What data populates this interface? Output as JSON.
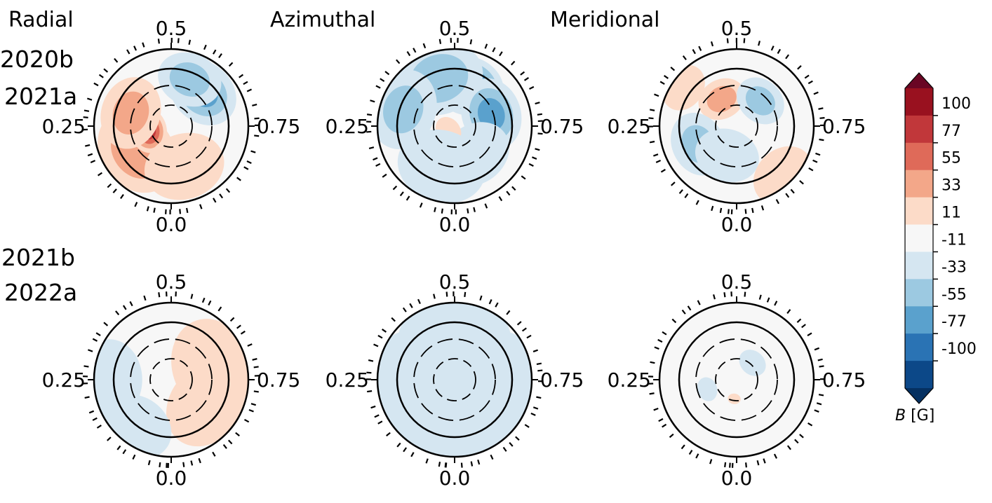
{
  "chart_data": {
    "type": "heatmap",
    "description_kind": "ZDI magnetic field maps (polar projection, stellar rotation phase)",
    "column_titles": [
      "Radial",
      "Azimuthal",
      "Meridional"
    ],
    "rows": [
      {
        "labels": [
          "2020b",
          "2021a"
        ]
      },
      {
        "labels": [
          "2021b",
          "2022a"
        ]
      }
    ],
    "phase_labels": {
      "top": "0.5",
      "left": "0.25",
      "right": "0.75",
      "bottom": "0.0"
    },
    "panels": [
      {
        "row": 0,
        "col": 0,
        "component": "Radial",
        "epoch": "2020b/2021a",
        "blobs": [
          {
            "phase": 0.15,
            "rfrac": 0.55,
            "value": 45,
            "size": 0.55
          },
          {
            "phase": 0.22,
            "rfrac": 0.3,
            "value": 90,
            "size": 0.28
          },
          {
            "phase": 0.3,
            "rfrac": 0.55,
            "value": 35,
            "size": 0.45
          },
          {
            "phase": 0.62,
            "rfrac": 0.6,
            "value": -60,
            "size": 0.45
          },
          {
            "phase": 0.56,
            "rfrac": 0.65,
            "value": -40,
            "size": 0.4
          },
          {
            "phase": 0.95,
            "rfrac": 0.55,
            "value": 18,
            "size": 0.5
          }
        ]
      },
      {
        "row": 0,
        "col": 1,
        "component": "Azimuthal",
        "epoch": "2020b/2021a",
        "blobs": [
          {
            "phase": 0.55,
            "rfrac": 0.55,
            "value": -95,
            "size": 0.45
          },
          {
            "phase": 0.45,
            "rfrac": 0.65,
            "value": -45,
            "size": 0.55
          },
          {
            "phase": 0.7,
            "rfrac": 0.5,
            "value": -60,
            "size": 0.45
          },
          {
            "phase": 0.3,
            "rfrac": 0.7,
            "value": -35,
            "size": 0.5
          },
          {
            "phase": 0.9,
            "rfrac": 0.45,
            "value": -30,
            "size": 0.45
          },
          {
            "phase": 0.15,
            "rfrac": 0.1,
            "value": 30,
            "size": 0.18
          },
          {
            "phase": 0.05,
            "rfrac": 0.55,
            "value": -20,
            "size": 0.55
          }
        ]
      },
      {
        "row": 0,
        "col": 2,
        "component": "Meridional",
        "epoch": "2020b/2021a",
        "blobs": [
          {
            "phase": 0.42,
            "rfrac": 0.4,
            "value": 40,
            "size": 0.3
          },
          {
            "phase": 0.62,
            "rfrac": 0.45,
            "value": -38,
            "size": 0.32
          },
          {
            "phase": 0.18,
            "rfrac": 0.55,
            "value": -36,
            "size": 0.4
          },
          {
            "phase": 0.05,
            "rfrac": 0.4,
            "value": -25,
            "size": 0.4
          },
          {
            "phase": 0.88,
            "rfrac": 0.88,
            "value": 20,
            "size": 0.4
          },
          {
            "phase": 0.35,
            "rfrac": 0.85,
            "value": 15,
            "size": 0.3
          }
        ]
      },
      {
        "row": 1,
        "col": 0,
        "component": "Radial",
        "epoch": "2021b/2022a",
        "blobs": [
          {
            "phase": 0.7,
            "rfrac": 0.55,
            "value": 25,
            "size": 0.6
          },
          {
            "phase": 0.85,
            "rfrac": 0.55,
            "value": 20,
            "size": 0.55
          },
          {
            "phase": 0.25,
            "rfrac": 0.8,
            "value": -18,
            "size": 0.5
          },
          {
            "phase": 0.1,
            "rfrac": 0.75,
            "value": -16,
            "size": 0.45
          }
        ]
      },
      {
        "row": 1,
        "col": 1,
        "component": "Azimuthal",
        "epoch": "2021b/2022a",
        "blobs": [
          {
            "phase": 0.0,
            "rfrac": 0.4,
            "value": -20,
            "size": 0.8
          },
          {
            "phase": 0.5,
            "rfrac": 0.5,
            "value": -18,
            "size": 0.7
          },
          {
            "phase": 0.25,
            "rfrac": 0.6,
            "value": -18,
            "size": 0.6
          },
          {
            "phase": 0.75,
            "rfrac": 0.6,
            "value": -18,
            "size": 0.6
          }
        ]
      },
      {
        "row": 1,
        "col": 2,
        "component": "Meridional",
        "epoch": "2021b/2022a",
        "blobs": [
          {
            "phase": 0.62,
            "rfrac": 0.3,
            "value": -20,
            "size": 0.18
          },
          {
            "phase": 0.2,
            "rfrac": 0.4,
            "value": -16,
            "size": 0.15
          },
          {
            "phase": 0.02,
            "rfrac": 0.25,
            "value": 14,
            "size": 0.08
          }
        ]
      }
    ],
    "colorbar": {
      "label_italic": "B",
      "label_unit": " [G]",
      "ticks": [
        "100",
        "77",
        "55",
        "33",
        "11",
        "-11",
        "-33",
        "-55",
        "-77",
        "-100"
      ],
      "levels": [
        122,
        100,
        77,
        55,
        33,
        11,
        -11,
        -33,
        -55,
        -77,
        -100,
        -122
      ],
      "colors_top_to_bottom": [
        "#6a0624",
        "#99111f",
        "#c1373a",
        "#df6a59",
        "#f3a789",
        "#fcdbc8",
        "#f7f7f7",
        "#d5e6f1",
        "#9cc9e1",
        "#5aa1cd",
        "#2a73b4",
        "#0c4888",
        "#053061"
      ]
    }
  }
}
